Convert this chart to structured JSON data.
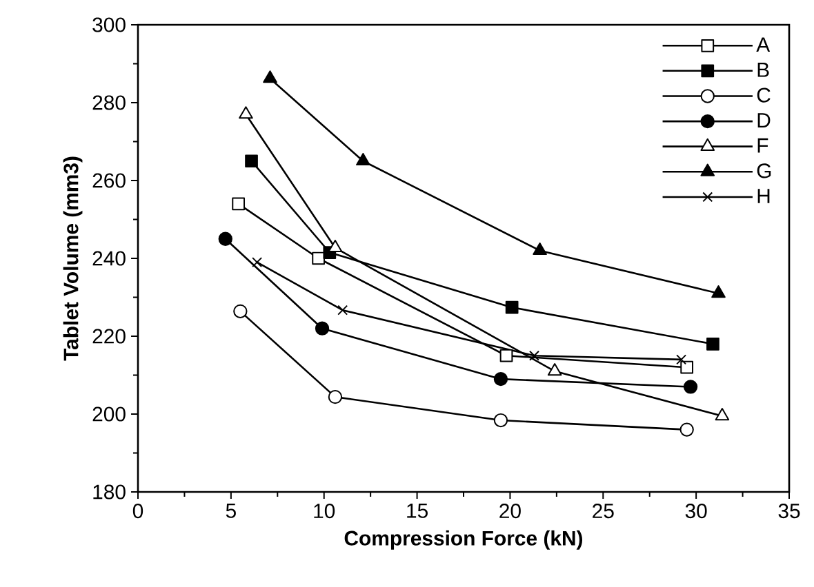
{
  "chart_data": {
    "type": "line",
    "xlabel": "Compression  Force  (kN)",
    "ylabel": "Tablet  Volume  (mm3)",
    "xlim": [
      0,
      35
    ],
    "xticks": [
      0,
      5,
      10,
      15,
      20,
      25,
      30,
      35
    ],
    "ylim": [
      180,
      300
    ],
    "yticks": [
      180,
      200,
      220,
      240,
      260,
      280,
      300
    ],
    "grid": false,
    "legend": "top right",
    "line_style": "solid",
    "series": [
      {
        "name": "A",
        "color": "#000000",
        "marker": "square",
        "colors": [
          "#ffffff",
          "#ffffff",
          "#ffffff",
          "#ffffff"
        ],
        "x": [
          5.4,
          9.7,
          19.8,
          29.5
        ],
        "values": [
          254,
          240,
          215,
          212
        ]
      },
      {
        "name": "B",
        "color": "#000000",
        "marker": "square",
        "colors": [
          "#000000",
          "#000000",
          "#000000",
          "#000000"
        ],
        "x": [
          6.1,
          10.3,
          20.1,
          30.9
        ],
        "values": [
          265,
          241.5,
          227.4,
          218
        ]
      },
      {
        "name": "C",
        "color": "#000000",
        "marker": "circle",
        "colors": [
          "#ffffff",
          "#ffffff",
          "#ffffff",
          "#ffffff"
        ],
        "x": [
          5.5,
          10.6,
          19.5,
          29.5
        ],
        "values": [
          226.4,
          204.4,
          198.4,
          196
        ]
      },
      {
        "name": "D",
        "color": "#000000",
        "marker": "circle",
        "colors": [
          "#000000",
          "#000000",
          "#000000",
          "#000000"
        ],
        "x": [
          4.7,
          9.9,
          19.5,
          29.7
        ],
        "values": [
          245,
          222,
          209,
          207
        ]
      },
      {
        "name": "F",
        "color": "#000000",
        "marker": "triangle",
        "colors": [
          "#ffffff",
          "#ffffff",
          "#ffffff",
          "#ffffff"
        ],
        "x": [
          5.8,
          10.6,
          22.4,
          31.4
        ],
        "values": [
          277,
          242.7,
          211,
          199.5
        ]
      },
      {
        "name": "G",
        "color": "#000000",
        "marker": "triangle",
        "colors": [
          "#000000",
          "#000000",
          "#000000",
          "#000000"
        ],
        "x": [
          7.1,
          12.1,
          21.6,
          31.2
        ],
        "values": [
          286.2,
          265,
          242,
          231
        ]
      },
      {
        "name": "H",
        "color": "#000000",
        "marker": "cross",
        "x": [
          6.4,
          11.0,
          21.3,
          29.2
        ],
        "values": [
          239,
          226.7,
          215,
          214
        ]
      }
    ]
  }
}
